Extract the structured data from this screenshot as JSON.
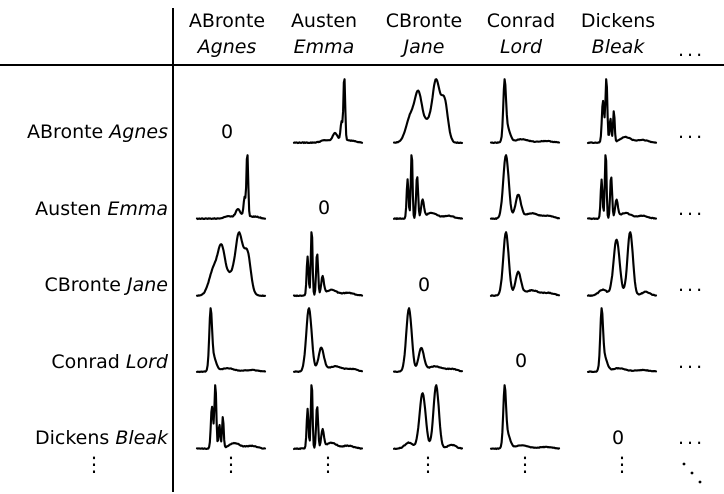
{
  "authors": [
    {
      "author": "ABronte",
      "work": "Agnes"
    },
    {
      "author": "Austen",
      "work": "Emma"
    },
    {
      "author": "CBronte",
      "work": "Jane"
    },
    {
      "author": "Conrad",
      "work": "Lord"
    },
    {
      "author": "Dickens",
      "work": "Bleak"
    }
  ],
  "diagonal_label": "0",
  "ellipsis": {
    "horizontal": "...",
    "vertical": "⋮"
  },
  "cells": [
    [
      "zero",
      "sharp_late",
      "wide_multi",
      "sharp_early",
      "sharp_spiky"
    ],
    [
      "sharp_late",
      "zero",
      "spiky_early",
      "early_shoulder",
      "spiky_early"
    ],
    [
      "wide_multi",
      "spiky_early",
      "zero",
      "early_shoulder",
      "twin_peaks"
    ],
    [
      "sharp_early",
      "early_shoulder",
      "early_shoulder",
      "zero",
      "sharp_early"
    ],
    [
      "sharp_spiky",
      "spiky_early",
      "twin_peaks",
      "sharp_early",
      "zero"
    ]
  ]
}
